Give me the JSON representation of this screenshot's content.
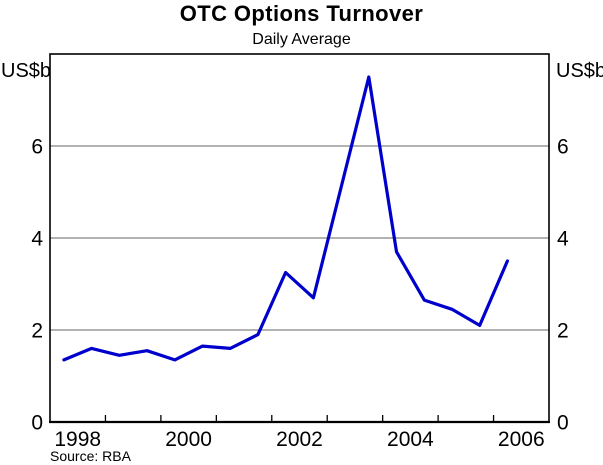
{
  "chart_data": {
    "type": "line",
    "title": "OTC Options Turnover",
    "subtitle": "Daily Average",
    "y_axis_label_left": "US$b",
    "y_axis_label_right": "US$b",
    "source": "Source: RBA",
    "series_name": "OTC options turnover, daily average",
    "periods": [
      "1998 H1",
      "1998 H2",
      "1999 H1",
      "1999 H2",
      "2000 H1",
      "2000 H2",
      "2001 H1",
      "2001 H2",
      "2002 H1",
      "2002 H2",
      "2003 H1",
      "2003 H2",
      "2004 H1",
      "2004 H2",
      "2005 H1",
      "2005 H2",
      "2006 H1"
    ],
    "x": [
      1998.25,
      1998.75,
      1999.25,
      1999.75,
      2000.25,
      2000.75,
      2001.25,
      2001.75,
      2002.25,
      2002.75,
      2003.25,
      2003.75,
      2004.25,
      2004.75,
      2005.25,
      2005.75,
      2006.25
    ],
    "values": [
      1.35,
      1.6,
      1.45,
      1.55,
      1.35,
      1.65,
      1.6,
      1.9,
      3.25,
      2.7,
      5.1,
      7.5,
      3.7,
      2.65,
      2.45,
      2.1,
      3.5
    ],
    "ylim": [
      0,
      8
    ],
    "y_ticks": [
      0,
      2,
      4,
      6
    ],
    "y_tick_labels": [
      "0",
      "2",
      "4",
      "6"
    ],
    "xlim": [
      1998,
      2007
    ],
    "x_tick_boundaries": [
      1999,
      2000,
      2001,
      2002,
      2003,
      2004,
      2005,
      2006
    ],
    "x_labels": [
      {
        "label": "1998",
        "pos": 1998.5
      },
      {
        "label": "2000",
        "pos": 2000.5
      },
      {
        "label": "2002",
        "pos": 2002.5
      },
      {
        "label": "2004",
        "pos": 2004.5
      },
      {
        "label": "2006",
        "pos": 2006.5
      }
    ],
    "grid": "horizontal",
    "legend": "none",
    "line_color": "#0000cc",
    "gridline_color": "#646464",
    "axis_color": "#000000"
  }
}
